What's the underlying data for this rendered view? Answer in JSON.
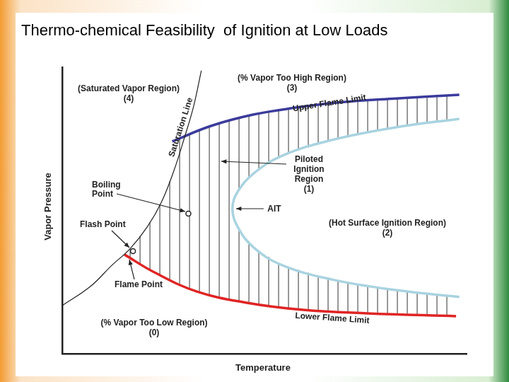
{
  "chart_data": {
    "type": "scatter",
    "title": "Thermo-chemical Feasibility  of Ignition at Low Loads",
    "x_label": "Temperature",
    "y_label": "Vapor Pressure",
    "xlim": [
      0,
      100
    ],
    "ylim": [
      0,
      100
    ],
    "tick_labels": false,
    "grid": false,
    "series": [
      {
        "name": "Saturation Line",
        "color": "#222222",
        "type": "line",
        "line_style": "solid",
        "x": [
          0,
          7.0,
          12.3,
          16.7,
          21.1,
          24.6,
          27.7,
          30.2,
          32.5,
          34.4
        ],
        "values": [
          16.8,
          23.5,
          30.9,
          36.5,
          44.4,
          53.1,
          64.2,
          75.3,
          86.4,
          98.8
        ]
      },
      {
        "name": "Upper Flame Limit",
        "color": "#3b3b9c",
        "type": "line",
        "line_style": "solid",
        "x": [
          27.2,
          36.8,
          47.4,
          57.9,
          68.4,
          82.5,
          98.2
        ],
        "values": [
          74.1,
          79.5,
          83.5,
          85.9,
          87.7,
          89.1,
          90.4
        ]
      },
      {
        "name": "Lower Flame Limit",
        "color": "#e02424",
        "type": "line",
        "line_style": "solid",
        "x": [
          15.4,
          22.8,
          33.3,
          45.6,
          59.6,
          75.4,
          97.4
        ],
        "values": [
          34.6,
          28.4,
          21.7,
          17.8,
          15.3,
          14.1,
          13.1
        ]
      },
      {
        "name": "AIT",
        "color": "#a9d3e0",
        "type": "line",
        "line_style": "solid",
        "x": [
          98.2,
          82.5,
          66.7,
          54.4,
          47.4,
          43.5,
          42.1,
          43.5,
          47.4,
          54.4,
          66.7,
          82.5,
          98.2
        ],
        "values": [
          82.0,
          79.0,
          74.6,
          69.1,
          63.0,
          56.8,
          50.6,
          44.0,
          37.0,
          30.9,
          25.9,
          22.2,
          19.8
        ]
      },
      {
        "name": "Flash Point",
        "color": "#222222",
        "type": "scatter",
        "marker": "circle",
        "x": [
          17.5
        ],
        "values": [
          35.8
        ]
      },
      {
        "name": "Boiling Point",
        "color": "#222222",
        "type": "scatter",
        "marker": "circle",
        "x": [
          31.2
        ],
        "values": [
          48.9
        ]
      }
    ],
    "annotations": [
      {
        "lines": [
          "(Saturated Vapor Region)",
          "(4)"
        ]
      },
      {
        "lines": [
          "(% Vapor Too High Region)",
          "(3)"
        ]
      },
      {
        "lines": [
          "Piloted",
          "Ignition",
          "Region",
          "(1)"
        ]
      },
      {
        "lines": [
          "(Hot Surface Ignition Region)",
          "(2)"
        ]
      },
      {
        "lines": [
          "Flame Point"
        ]
      },
      {
        "lines": [
          "(% Vapor Too Low Region)",
          "(0)"
        ]
      }
    ]
  }
}
